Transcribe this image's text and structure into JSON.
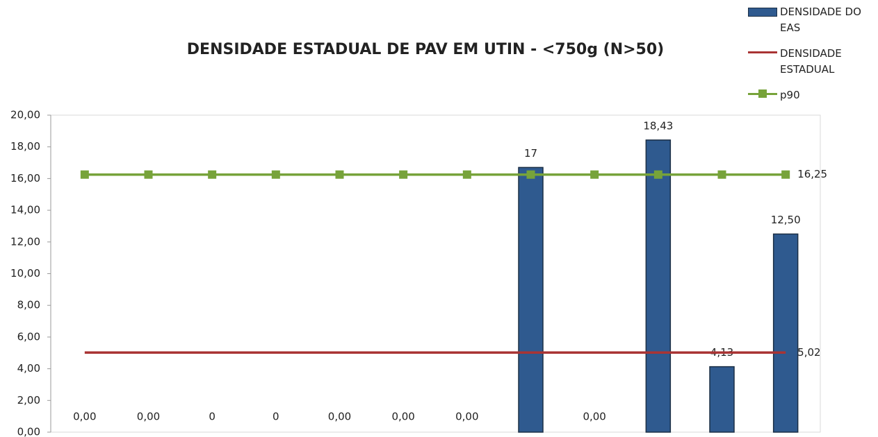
{
  "chart_data": {
    "type": "bar",
    "title": "DENSIDADE ESTADUAL DE PAV EM UTIN - <750g (N>50)",
    "categories": [
      null,
      null,
      null,
      null,
      null,
      null,
      null,
      null,
      null,
      null,
      null,
      null
    ],
    "series": [
      {
        "name": "DENSIDADE DO EAS",
        "type": "bar",
        "color": "#2f5a8f",
        "values": [
          0,
          0,
          0,
          0,
          0,
          0,
          0,
          16.7,
          0,
          18.43,
          4.13,
          12.5
        ],
        "value_labels": [
          "0,00",
          "0,00",
          "0",
          "0",
          "0,00",
          "0,00",
          "0,00",
          "17",
          "0,00",
          "18,43",
          "4,13",
          "12,50"
        ]
      },
      {
        "name": "DENSIDADE ESTADUAL",
        "type": "line",
        "color": "#a93434",
        "values": [
          5.02,
          5.02,
          5.02,
          5.02,
          5.02,
          5.02,
          5.02,
          5.02,
          5.02,
          5.02,
          5.02,
          5.02
        ],
        "value_labels": [
          null,
          null,
          null,
          null,
          null,
          null,
          null,
          null,
          null,
          null,
          null,
          "5,02"
        ]
      },
      {
        "name": "p90",
        "type": "line",
        "marker": "square",
        "color": "#77a33a",
        "values": [
          16.25,
          16.25,
          16.25,
          16.25,
          16.25,
          16.25,
          16.25,
          16.25,
          16.25,
          16.25,
          16.25,
          16.25
        ],
        "value_labels": [
          null,
          null,
          null,
          null,
          null,
          null,
          null,
          null,
          null,
          null,
          null,
          "16,25"
        ]
      }
    ],
    "ylim": [
      0,
      20
    ],
    "yticks": [
      {
        "value": 0,
        "label": "0,00"
      },
      {
        "value": 2,
        "label": "2,00"
      },
      {
        "value": 4,
        "label": "4,00"
      },
      {
        "value": 6,
        "label": "6,00"
      },
      {
        "value": 8,
        "label": "8,00"
      },
      {
        "value": 10,
        "label": "10,00"
      },
      {
        "value": 12,
        "label": "12,00"
      },
      {
        "value": 14,
        "label": "14,00"
      },
      {
        "value": 16,
        "label": "16,00"
      },
      {
        "value": 18,
        "label": "18,00"
      },
      {
        "value": 20,
        "label": "20,00"
      }
    ],
    "grid": false,
    "legend": "top-right"
  }
}
